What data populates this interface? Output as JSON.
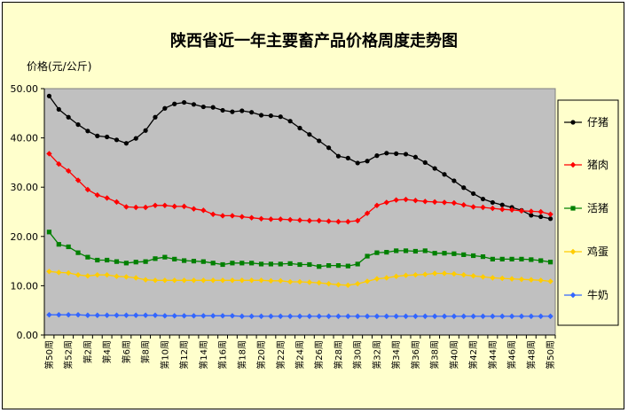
{
  "chart_data": {
    "type": "line",
    "title": "陕西省近一年主要畜产品价格周度走势图",
    "ylabel": "价格(元/公斤)",
    "xlabel": "",
    "ylim": [
      0,
      50
    ],
    "yticks": [
      "0.00",
      "10.00",
      "20.00",
      "30.00",
      "40.00",
      "50.00"
    ],
    "grid": false,
    "legend_position": "right",
    "plot_background": "#c0c0c0",
    "chart_background": "#ffffcc",
    "x_tick_labels": [
      "第50周",
      "第52周",
      "第2周",
      "第4周",
      "第6周",
      "第8周",
      "第10周",
      "第12周",
      "第14周",
      "第16周",
      "第18周",
      "第20周",
      "第22周",
      "第24周",
      "第26周",
      "第28周",
      "第30周",
      "第32周",
      "第34周",
      "第36周",
      "第38周",
      "第40周",
      "第42周",
      "第44周",
      "第46周",
      "第48周",
      "第50周"
    ],
    "x": [
      "第50周",
      "第51周",
      "第52周",
      "第1周",
      "第2周",
      "第3周",
      "第4周",
      "第5周",
      "第6周",
      "第7周",
      "第8周",
      "第9周",
      "第10周",
      "第11周",
      "第12周",
      "第13周",
      "第14周",
      "第15周",
      "第16周",
      "第17周",
      "第18周",
      "第19周",
      "第20周",
      "第21周",
      "第22周",
      "第23周",
      "第24周",
      "第25周",
      "第26周",
      "第27周",
      "第28周",
      "第29周",
      "第30周",
      "第31周",
      "第32周",
      "第33周",
      "第34周",
      "第35周",
      "第36周",
      "第37周",
      "第38周",
      "第39周",
      "第40周",
      "第41周",
      "第42周",
      "第43周",
      "第44周",
      "第45周",
      "第46周",
      "第47周",
      "第48周",
      "第49周",
      "第50周"
    ],
    "series": [
      {
        "name": "仔猪",
        "color": "#000000",
        "marker": "circle",
        "values": [
          48.5,
          45.8,
          44.2,
          42.7,
          41.4,
          40.4,
          40.2,
          39.6,
          38.9,
          39.9,
          41.5,
          44.2,
          46.0,
          46.9,
          47.2,
          46.8,
          46.3,
          46.2,
          45.6,
          45.3,
          45.5,
          45.2,
          44.6,
          44.5,
          44.3,
          43.4,
          42.0,
          40.7,
          39.4,
          38.0,
          36.3,
          35.9,
          34.9,
          35.3,
          36.4,
          36.9,
          36.8,
          36.7,
          36.1,
          35.0,
          33.8,
          32.6,
          31.3,
          29.9,
          28.7,
          27.6,
          26.9,
          26.4,
          25.9,
          25.3,
          24.3,
          24.0,
          23.6
        ]
      },
      {
        "name": "猪肉",
        "color": "#ff0000",
        "marker": "diamond",
        "values": [
          36.8,
          34.7,
          33.3,
          31.4,
          29.5,
          28.4,
          27.8,
          27.0,
          26.0,
          25.9,
          25.9,
          26.3,
          26.3,
          26.1,
          26.1,
          25.6,
          25.3,
          24.5,
          24.2,
          24.2,
          24.0,
          23.8,
          23.6,
          23.5,
          23.5,
          23.4,
          23.3,
          23.2,
          23.2,
          23.1,
          23.0,
          23.0,
          23.2,
          24.7,
          26.3,
          26.9,
          27.4,
          27.5,
          27.3,
          27.1,
          27.0,
          26.9,
          26.8,
          26.4,
          26.0,
          25.9,
          25.7,
          25.5,
          25.4,
          25.2,
          25.1,
          25.0,
          24.5
        ]
      },
      {
        "name": "活猪",
        "color": "#008000",
        "marker": "square",
        "values": [
          20.9,
          18.4,
          17.9,
          16.7,
          15.8,
          15.2,
          15.2,
          14.9,
          14.6,
          14.8,
          14.9,
          15.5,
          15.8,
          15.4,
          15.1,
          15.0,
          14.9,
          14.6,
          14.3,
          14.6,
          14.6,
          14.6,
          14.4,
          14.4,
          14.4,
          14.5,
          14.3,
          14.3,
          13.9,
          14.1,
          14.1,
          14.0,
          14.4,
          16.0,
          16.7,
          16.8,
          17.1,
          17.1,
          17.0,
          17.1,
          16.6,
          16.6,
          16.5,
          16.3,
          16.1,
          15.9,
          15.4,
          15.4,
          15.4,
          15.4,
          15.3,
          15.1,
          14.8
        ]
      },
      {
        "name": "鸡蛋",
        "color": "#ffcc00",
        "marker": "diamond",
        "values": [
          12.9,
          12.7,
          12.6,
          12.2,
          12.0,
          12.2,
          12.2,
          11.9,
          11.8,
          11.6,
          11.2,
          11.1,
          11.1,
          11.1,
          11.1,
          11.1,
          11.1,
          11.1,
          11.1,
          11.1,
          11.1,
          11.1,
          11.1,
          11.0,
          11.0,
          10.8,
          10.8,
          10.7,
          10.6,
          10.4,
          10.2,
          10.1,
          10.4,
          10.9,
          11.4,
          11.6,
          11.9,
          12.1,
          12.2,
          12.3,
          12.5,
          12.5,
          12.4,
          12.2,
          12.0,
          11.8,
          11.6,
          11.5,
          11.4,
          11.3,
          11.2,
          11.1,
          10.9
        ]
      },
      {
        "name": "牛奶",
        "color": "#3366ff",
        "marker": "diamond",
        "values": [
          4.1,
          4.1,
          4.1,
          4.1,
          4.0,
          4.0,
          4.0,
          4.0,
          4.0,
          4.0,
          4.0,
          4.0,
          3.9,
          3.9,
          3.9,
          3.9,
          3.9,
          3.9,
          3.9,
          3.9,
          3.8,
          3.8,
          3.8,
          3.8,
          3.8,
          3.8,
          3.8,
          3.8,
          3.8,
          3.8,
          3.8,
          3.8,
          3.8,
          3.8,
          3.8,
          3.8,
          3.8,
          3.8,
          3.8,
          3.8,
          3.8,
          3.8,
          3.8,
          3.8,
          3.8,
          3.8,
          3.8,
          3.8,
          3.8,
          3.8,
          3.8,
          3.8,
          3.8
        ]
      }
    ]
  }
}
